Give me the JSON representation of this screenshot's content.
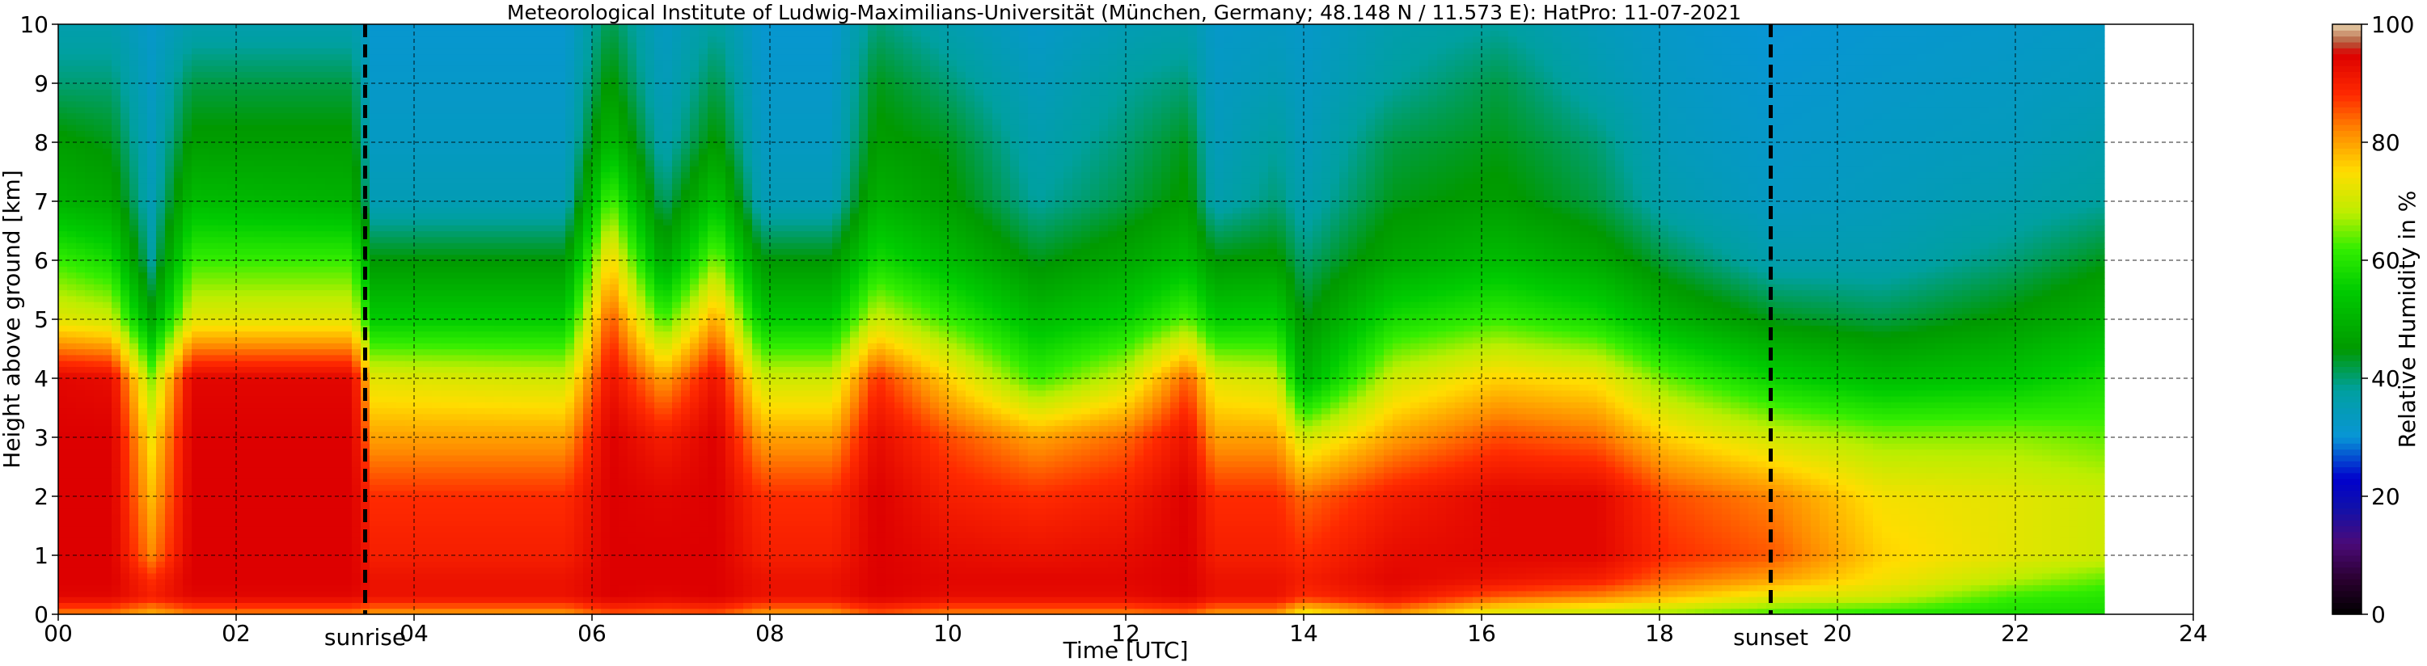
{
  "chart_data": {
    "type": "heatmap",
    "title": "Meteorological Institute of Ludwig-Maximilians-Universität (München, Germany; 48.148 N / 11.573 E):    HatPro: 11-07-2021",
    "xlabel": "Time [UTC]",
    "ylabel": "Height above ground [km]",
    "xlim": [
      0,
      24
    ],
    "ylim": [
      0,
      10
    ],
    "x_ticks": [
      0,
      2,
      4,
      6,
      8,
      10,
      12,
      14,
      16,
      18,
      20,
      22,
      24
    ],
    "x_tick_labels": [
      "00",
      "02",
      "04",
      "06",
      "08",
      "10",
      "12",
      "14",
      "16",
      "18",
      "20",
      "22",
      "24"
    ],
    "y_ticks": [
      0,
      1,
      2,
      3,
      4,
      5,
      6,
      7,
      8,
      9,
      10
    ],
    "y_tick_labels": [
      "0",
      "1",
      "2",
      "3",
      "4",
      "5",
      "6",
      "7",
      "8",
      "9",
      "10"
    ],
    "grid": true,
    "data_end_hour": 23.0,
    "annotations": [
      {
        "label": "sunrise",
        "x": 3.45
      },
      {
        "label": "sunset",
        "x": 19.25
      }
    ],
    "colorbar": {
      "label": "Relative Humidity in %",
      "range": [
        0,
        100
      ],
      "ticks": [
        0,
        20,
        40,
        60,
        80,
        100
      ],
      "tick_labels": [
        "0",
        "20",
        "40",
        "60",
        "80",
        "100"
      ],
      "stops": [
        {
          "value": 0,
          "color": "#000000"
        },
        {
          "value": 6,
          "color": "#2a0030"
        },
        {
          "value": 12,
          "color": "#4b0a78"
        },
        {
          "value": 18,
          "color": "#1111aa"
        },
        {
          "value": 23,
          "color": "#0000cc"
        },
        {
          "value": 30,
          "color": "#0895d6"
        },
        {
          "value": 38,
          "color": "#00a0a0"
        },
        {
          "value": 45,
          "color": "#009900"
        },
        {
          "value": 55,
          "color": "#00cc00"
        },
        {
          "value": 62,
          "color": "#33ee00"
        },
        {
          "value": 68,
          "color": "#bbee00"
        },
        {
          "value": 75,
          "color": "#ffdd00"
        },
        {
          "value": 82,
          "color": "#ff8800"
        },
        {
          "value": 88,
          "color": "#ff2a00"
        },
        {
          "value": 95,
          "color": "#dd0000"
        },
        {
          "value": 97,
          "color": "#b45a3c"
        },
        {
          "value": 100,
          "color": "#e6d2aa"
        }
      ]
    },
    "profile_heights_km": [
      0,
      0.3,
      0.6,
      1,
      2,
      3,
      4,
      5,
      6,
      7,
      8,
      9,
      10
    ],
    "profiles": [
      {
        "t": 0.0,
        "rh": [
          82,
          94,
          95,
          95,
          95,
          95,
          94,
          72,
          62,
          50,
          46,
          40,
          36
        ]
      },
      {
        "t": 0.6,
        "rh": [
          82,
          94,
          95,
          95,
          95,
          95,
          93,
          70,
          58,
          48,
          44,
          40,
          36
        ]
      },
      {
        "t": 1.05,
        "rh": [
          78,
          90,
          88,
          82,
          78,
          74,
          66,
          48,
          38,
          35,
          34,
          33,
          32
        ]
      },
      {
        "t": 1.5,
        "rh": [
          82,
          94,
          95,
          95,
          95,
          95,
          94,
          72,
          62,
          52,
          46,
          42,
          36
        ]
      },
      {
        "t": 3.3,
        "rh": [
          82,
          94,
          95,
          95,
          95,
          95,
          94,
          72,
          62,
          50,
          46,
          42,
          36
        ]
      },
      {
        "t": 3.55,
        "rh": [
          80,
          92,
          92,
          90,
          88,
          80,
          72,
          55,
          45,
          35,
          33,
          32,
          31
        ]
      },
      {
        "t": 5.7,
        "rh": [
          80,
          92,
          92,
          90,
          88,
          80,
          70,
          55,
          45,
          35,
          33,
          32,
          31
        ]
      },
      {
        "t": 6.2,
        "rh": [
          85,
          95,
          95,
          95,
          95,
          95,
          92,
          86,
          76,
          64,
          52,
          46,
          42
        ]
      },
      {
        "t": 6.8,
        "rh": [
          84,
          94,
          95,
          95,
          94,
          90,
          80,
          62,
          48,
          40,
          36,
          34,
          33
        ]
      },
      {
        "t": 7.4,
        "rh": [
          85,
          95,
          95,
          95,
          95,
          95,
          92,
          80,
          66,
          54,
          46,
          42,
          38
        ]
      },
      {
        "t": 7.9,
        "rh": [
          80,
          92,
          92,
          90,
          88,
          80,
          70,
          55,
          45,
          35,
          33,
          32,
          31
        ]
      },
      {
        "t": 8.7,
        "rh": [
          80,
          92,
          92,
          90,
          88,
          80,
          70,
          55,
          45,
          35,
          33,
          32,
          31
        ]
      },
      {
        "t": 9.2,
        "rh": [
          85,
          95,
          95,
          95,
          95,
          93,
          88,
          70,
          58,
          50,
          46,
          44,
          40
        ]
      },
      {
        "t": 10.0,
        "rh": [
          82,
          93,
          94,
          93,
          90,
          86,
          76,
          62,
          52,
          46,
          44,
          40,
          36
        ]
      },
      {
        "t": 11.0,
        "rh": [
          82,
          93,
          94,
          92,
          88,
          80,
          62,
          52,
          44,
          38,
          36,
          34,
          32
        ]
      },
      {
        "t": 12.0,
        "rh": [
          82,
          93,
          94,
          93,
          90,
          84,
          70,
          56,
          48,
          42,
          40,
          38,
          35
        ]
      },
      {
        "t": 12.7,
        "rh": [
          84,
          95,
          95,
          95,
          95,
          92,
          85,
          64,
          52,
          46,
          44,
          40,
          36
        ]
      },
      {
        "t": 13.0,
        "rh": [
          80,
          92,
          92,
          90,
          88,
          80,
          72,
          55,
          45,
          36,
          34,
          33,
          32
        ]
      },
      {
        "t": 13.7,
        "rh": [
          80,
          92,
          92,
          90,
          88,
          80,
          70,
          56,
          46,
          40,
          38,
          35,
          33
        ]
      },
      {
        "t": 14.0,
        "rh": [
          72,
          88,
          90,
          88,
          84,
          70,
          50,
          44,
          40,
          36,
          34,
          33,
          32
        ]
      },
      {
        "t": 15.0,
        "rh": [
          80,
          92,
          94,
          93,
          90,
          80,
          70,
          58,
          48,
          44,
          42,
          38,
          36
        ]
      },
      {
        "t": 16.2,
        "rh": [
          70,
          85,
          92,
          94,
          94,
          86,
          76,
          62,
          52,
          46,
          44,
          42,
          38
        ]
      },
      {
        "t": 17.3,
        "rh": [
          68,
          82,
          90,
          94,
          94,
          84,
          74,
          58,
          48,
          42,
          40,
          36,
          34
        ]
      },
      {
        "t": 18.1,
        "rh": [
          66,
          78,
          84,
          88,
          86,
          76,
          64,
          50,
          42,
          36,
          34,
          33,
          32
        ]
      },
      {
        "t": 19.3,
        "rh": [
          62,
          72,
          80,
          85,
          82,
          70,
          56,
          44,
          36,
          33,
          32,
          31,
          30
        ]
      },
      {
        "t": 20.5,
        "rh": [
          60,
          70,
          74,
          76,
          74,
          66,
          52,
          42,
          36,
          34,
          33,
          32,
          31
        ]
      },
      {
        "t": 22.0,
        "rh": [
          58,
          62,
          68,
          72,
          72,
          66,
          54,
          46,
          40,
          36,
          34,
          33,
          32
        ]
      },
      {
        "t": 23.0,
        "rh": [
          58,
          60,
          64,
          70,
          70,
          64,
          58,
          50,
          44,
          38,
          36,
          34,
          33
        ]
      }
    ]
  }
}
